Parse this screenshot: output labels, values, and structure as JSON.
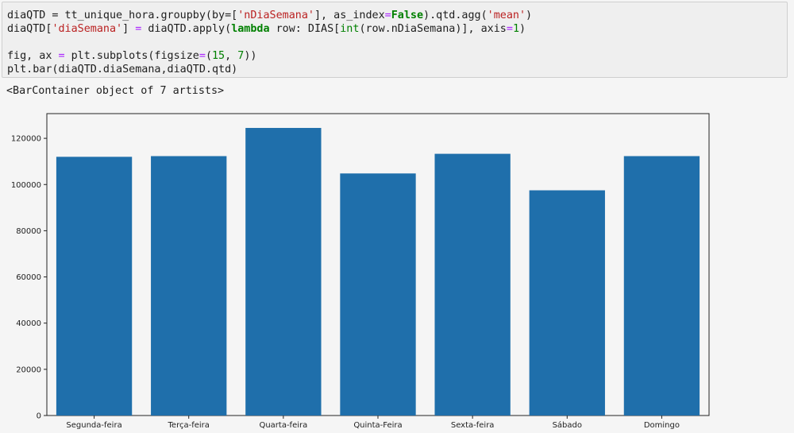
{
  "code_cell": {
    "lines": [
      [
        {
          "t": "diaQTD = tt_unique_hora.groupby(by=[",
          "c": ""
        },
        {
          "t": "'nDiaSemana'",
          "c": "str"
        },
        {
          "t": "], as_index",
          "c": ""
        },
        {
          "t": "=",
          "c": "op"
        },
        {
          "t": "False",
          "c": "kw"
        },
        {
          "t": ").qtd.agg(",
          "c": ""
        },
        {
          "t": "'mean'",
          "c": "str"
        },
        {
          "t": ")",
          "c": ""
        }
      ],
      [
        {
          "t": "diaQTD[",
          "c": ""
        },
        {
          "t": "'diaSemana'",
          "c": "str"
        },
        {
          "t": "] ",
          "c": ""
        },
        {
          "t": "=",
          "c": "op"
        },
        {
          "t": " diaQTD.apply(",
          "c": ""
        },
        {
          "t": "lambda",
          "c": "kw"
        },
        {
          "t": " row: DIAS[",
          "c": ""
        },
        {
          "t": "int",
          "c": "bi"
        },
        {
          "t": "(row.nDiaSemana)], axis",
          "c": ""
        },
        {
          "t": "=",
          "c": "op"
        },
        {
          "t": "1",
          "c": "num"
        },
        {
          "t": ")",
          "c": ""
        }
      ],
      [],
      [
        {
          "t": "fig, ax ",
          "c": ""
        },
        {
          "t": "=",
          "c": "op"
        },
        {
          "t": " plt.subplots(figsize",
          "c": ""
        },
        {
          "t": "=",
          "c": "op"
        },
        {
          "t": "(",
          "c": ""
        },
        {
          "t": "15",
          "c": "num"
        },
        {
          "t": ", ",
          "c": ""
        },
        {
          "t": "7",
          "c": "num"
        },
        {
          "t": "))",
          "c": ""
        }
      ],
      [
        {
          "t": "plt.bar(diaQTD.diaSemana,diaQTD.qtd)",
          "c": ""
        }
      ]
    ]
  },
  "output": {
    "text": "<BarContainer object of 7 artists>"
  },
  "chart_data": {
    "type": "bar",
    "categories": [
      "Segunda-feira",
      "Terça-feira",
      "Quarta-feira",
      "Quinta-Feira",
      "Sexta-feira",
      "Sábado",
      "Domingo"
    ],
    "values": [
      112000,
      112300,
      124500,
      104800,
      113300,
      97500,
      112300
    ],
    "yticks": [
      0,
      20000,
      40000,
      60000,
      80000,
      100000,
      120000
    ],
    "ylim": [
      0,
      130700
    ],
    "bar_color": "#1f6fab",
    "title": "",
    "xlabel": "",
    "ylabel": "",
    "grid": false
  }
}
